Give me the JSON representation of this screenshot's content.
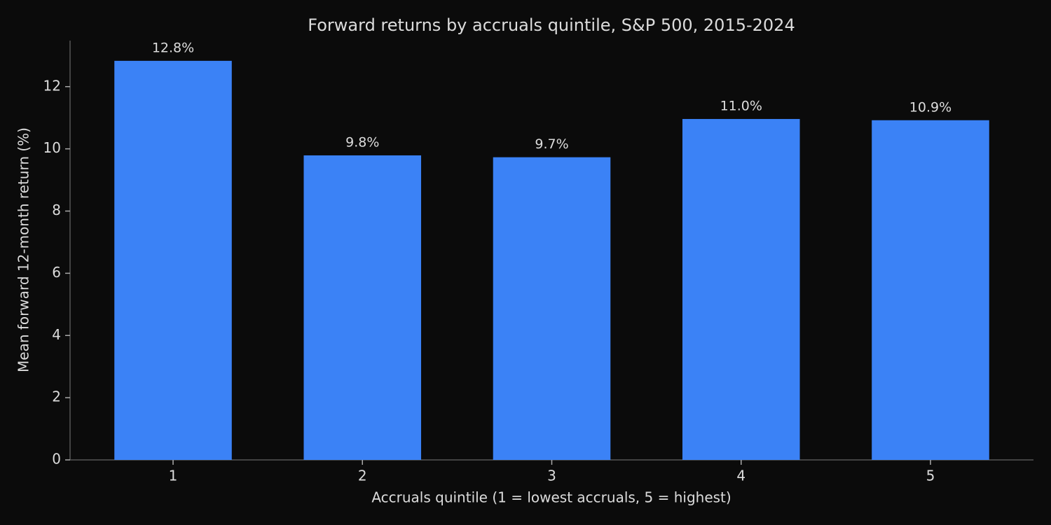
{
  "chart_data": {
    "type": "bar",
    "title": "Forward returns by accruals quintile, S&P 500, 2015-2024",
    "xlabel": "Accruals quintile (1 = lowest accruals, 5 = highest)",
    "ylabel": "Mean forward 12-month return (%)",
    "categories": [
      "1",
      "2",
      "3",
      "4",
      "5"
    ],
    "values": [
      12.83,
      9.79,
      9.73,
      10.96,
      10.92
    ],
    "value_labels": [
      "12.8%",
      "9.8%",
      "9.7%",
      "11.0%",
      "10.9%"
    ],
    "color": "#3b82f6",
    "ylim": [
      0,
      13.48
    ],
    "yticks": [
      0,
      2,
      4,
      6,
      8,
      10,
      12
    ],
    "grid": false
  }
}
